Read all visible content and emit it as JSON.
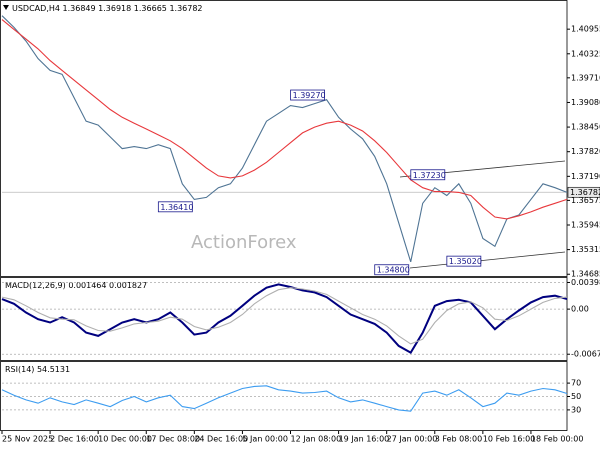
{
  "chart_data": [
    {
      "type": "line",
      "title": "USDCAD,H4",
      "last_bar": {
        "open": 1.36849,
        "high": 1.36918,
        "low": 1.36665,
        "close": 1.36782
      },
      "watermark": "ActionForex",
      "xlim": [
        0,
        47
      ],
      "ylim": [
        1.3464,
        1.4165
      ],
      "yticks": [
        1.40955,
        1.40325,
        {
          "value": 1.3971,
          "label": "1.39710"
        },
        {
          "value": 1.3908,
          "label": "1.39080"
        },
        {
          "value": 1.3845,
          "label": "1.38450"
        },
        {
          "value": 1.3782,
          "label": "1.37820"
        },
        {
          "value": 1.3719,
          "label": "1.37190"
        },
        1.36575,
        1.35945,
        1.35315,
        1.34685
      ],
      "series": [
        {
          "color": "#4f7494",
          "values": [
            1.413,
            1.41,
            1.4065,
            1.402,
            1.399,
            1.398,
            1.392,
            1.386,
            1.385,
            1.382,
            1.379,
            1.3795,
            1.379,
            1.38,
            1.379,
            1.37,
            1.366,
            1.3665,
            1.369,
            1.37,
            1.374,
            1.38,
            1.386,
            1.388,
            1.39,
            1.3895,
            1.3905,
            1.3915,
            1.387,
            1.384,
            1.3815,
            1.377,
            1.37,
            1.36,
            1.35,
            1.365,
            1.369,
            1.367,
            1.37,
            1.365,
            1.356,
            1.354,
            1.361,
            1.362,
            1.366,
            1.37,
            1.369,
            1.3678
          ]
        },
        {
          "color": "#e8383c",
          "values": [
            1.412,
            1.4095,
            1.407,
            1.4045,
            1.4015,
            1.399,
            1.3965,
            1.394,
            1.3915,
            1.389,
            1.387,
            1.3855,
            1.384,
            1.3825,
            1.381,
            1.379,
            1.3765,
            1.374,
            1.372,
            1.3715,
            1.372,
            1.3735,
            1.3755,
            1.378,
            1.3805,
            1.383,
            1.3845,
            1.3855,
            1.386,
            1.385,
            1.3835,
            1.381,
            1.378,
            1.3745,
            1.371,
            1.369,
            1.368,
            1.368,
            1.3678,
            1.367,
            1.364,
            1.3615,
            1.361,
            1.3618,
            1.3628,
            1.364,
            1.365,
            1.366
          ]
        }
      ],
      "annotations": [
        {
          "x": 27,
          "value": 1.3927,
          "label": "1.39270"
        },
        {
          "x": 16,
          "value": 1.3641,
          "label": "1.36410"
        },
        {
          "x": 37,
          "value": 1.3723,
          "label": "1.37230"
        },
        {
          "x": 34,
          "value": 1.348,
          "label": "1.34800"
        },
        {
          "x": 40,
          "value": 1.3502,
          "label": "1.35020"
        }
      ]
    },
    {
      "type": "line",
      "title": "MACD(12,26,9)",
      "current": [
        0.001464,
        0.001827
      ],
      "xlim": [
        0,
        47
      ],
      "ylim": [
        -0.0076,
        0.0045
      ],
      "yticks": [
        0.003982,
        {
          "value": 0,
          "label": "0.00"
        },
        -0.006737
      ],
      "series": [
        {
          "color": "#00007f",
          "values": [
            0.0015,
            0.0008,
            -0.0005,
            -0.0015,
            -0.002,
            -0.0012,
            -0.002,
            -0.0035,
            -0.004,
            -0.003,
            -0.002,
            -0.0015,
            -0.002,
            -0.0015,
            -0.0005,
            -0.002,
            -0.0038,
            -0.0035,
            -0.002,
            -0.001,
            0.0005,
            0.002,
            0.0032,
            0.0037,
            0.0033,
            0.0028,
            0.0025,
            0.0018,
            0.0005,
            -0.0008,
            -0.0015,
            -0.0022,
            -0.0035,
            -0.0055,
            -0.0065,
            -0.0035,
            0.0005,
            0.0012,
            0.0014,
            0.001,
            -0.001,
            -0.003,
            -0.0015,
            -0.0002,
            0.001,
            0.0018,
            0.002,
            0.0015
          ]
        },
        {
          "color": "#b0b0b0",
          "values": [
            0.0018,
            0.0014,
            0.0005,
            -0.0005,
            -0.0013,
            -0.0015,
            -0.0016,
            -0.0025,
            -0.0032,
            -0.0033,
            -0.0028,
            -0.0022,
            -0.002,
            -0.0018,
            -0.0012,
            -0.0015,
            -0.0026,
            -0.0031,
            -0.0027,
            -0.002,
            -0.0008,
            0.0008,
            0.002,
            0.0029,
            0.0032,
            0.003,
            0.0027,
            0.0022,
            0.0012,
            0.0002,
            -0.0008,
            -0.0015,
            -0.0025,
            -0.004,
            -0.0052,
            -0.0045,
            -0.002,
            -0.0002,
            0.0008,
            0.0011,
            0.0002,
            -0.0015,
            -0.0017,
            -0.001,
            0.0,
            0.001,
            0.0016,
            0.0018
          ]
        }
      ]
    },
    {
      "type": "line",
      "title": "RSI(14)",
      "current": 54.5131,
      "xlim": [
        0,
        47
      ],
      "ylim": [
        0,
        100
      ],
      "yticks": [
        70,
        50,
        30
      ],
      "xticks": [
        {
          "value": 0,
          "label": "25 Nov 2025"
        },
        {
          "value": 4,
          "label": "2 Dec 16:00"
        },
        {
          "value": 8,
          "label": "10 Dec 00:00"
        },
        {
          "value": 12,
          "label": "17 Dec 08:00"
        },
        {
          "value": 16,
          "label": "24 Dec 16:00"
        },
        {
          "value": 20,
          "label": "5 Jan 00:00"
        },
        {
          "value": 24,
          "label": "12 Jan 08:00"
        },
        {
          "value": 28,
          "label": "19 Jan 16:00"
        },
        {
          "value": 32,
          "label": "27 Jan 00:00"
        },
        {
          "value": 36,
          "label": "3 Feb 08:00"
        },
        {
          "value": 40,
          "label": "10 Feb 16:00"
        },
        {
          "value": 44,
          "label": "18 Feb 00:00"
        }
      ],
      "series": [
        {
          "color": "#3c9cf0",
          "values": [
            60,
            52,
            45,
            40,
            48,
            42,
            38,
            45,
            40,
            35,
            44,
            50,
            42,
            48,
            52,
            35,
            32,
            40,
            48,
            55,
            62,
            65,
            66,
            60,
            58,
            55,
            56,
            58,
            48,
            42,
            45,
            40,
            35,
            30,
            28,
            55,
            58,
            52,
            60,
            48,
            35,
            40,
            55,
            52,
            58,
            62,
            60,
            54.5
          ]
        }
      ]
    }
  ]
}
